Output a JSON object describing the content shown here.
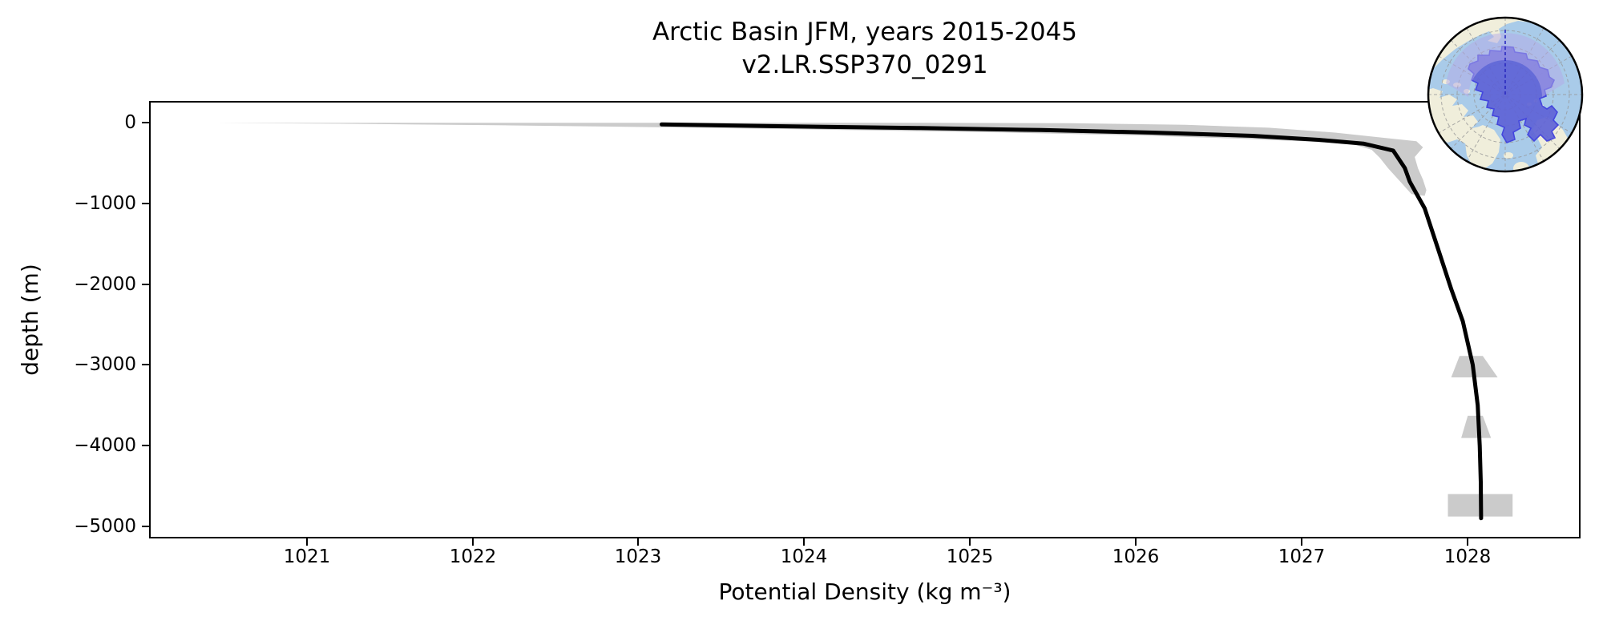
{
  "title": {
    "line1": "Arctic Basin JFM, years 2015-2045",
    "line2": "v2.LR.SSP370_0291"
  },
  "axes": {
    "xlabel": "Potential Density (kg m⁻³)",
    "ylabel": "depth (m)",
    "x_ticks": [
      1021,
      1022,
      1023,
      1024,
      1025,
      1026,
      1027,
      1028
    ],
    "y_ticks": [
      0,
      -1000,
      -2000,
      -3000,
      -4000,
      -5000
    ]
  },
  "colors": {
    "line": "#000000",
    "shading": "#cbcbcb",
    "background": "#ffffff",
    "map_ocean": "#a9cbe9",
    "map_land": "#f0eedb",
    "map_basin": "#5f63d6",
    "map_basin_edge": "#3b3bdd",
    "map_overlay": "#b3aae8",
    "map_graticule": "#979797",
    "map_meridian": "#2a2ac0",
    "map_border": "#000000"
  },
  "chart_data": {
    "type": "line",
    "title": "Arctic Basin JFM, years 2015-2045",
    "subtitle": "v2.LR.SSP370_0291",
    "xlabel": "Potential Density (kg m⁻³)",
    "ylabel": "depth (m)",
    "xlim": [
      1020.06,
      1028.67
    ],
    "ylim": [
      -5130,
      250
    ],
    "x_ticks": [
      1021,
      1022,
      1023,
      1024,
      1025,
      1026,
      1027,
      1028
    ],
    "y_ticks": [
      0,
      -1000,
      -2000,
      -3000,
      -4000,
      -5000
    ],
    "grid": false,
    "legend": false,
    "series": [
      {
        "name": "mean-density-profile",
        "type": "line",
        "color": "#000000",
        "points_density_depth": [
          [
            1023.14,
            -20
          ],
          [
            1023.8,
            -42
          ],
          [
            1024.7,
            -66
          ],
          [
            1025.43,
            -90
          ],
          [
            1026.1,
            -122
          ],
          [
            1026.7,
            -162
          ],
          [
            1027.1,
            -212
          ],
          [
            1027.37,
            -258
          ],
          [
            1027.55,
            -345
          ],
          [
            1027.62,
            -560
          ],
          [
            1027.65,
            -730
          ],
          [
            1027.74,
            -1060
          ],
          [
            1027.82,
            -1560
          ],
          [
            1027.9,
            -2060
          ],
          [
            1027.97,
            -2460
          ],
          [
            1028.03,
            -3000
          ],
          [
            1028.06,
            -3500
          ],
          [
            1028.072,
            -4000
          ],
          [
            1028.078,
            -4450
          ],
          [
            1028.08,
            -4900
          ]
        ]
      },
      {
        "name": "spread-envelope",
        "type": "area",
        "color": "#cbcbcb",
        "polygon_density_depth": [
          [
            1020.45,
            -3
          ],
          [
            1021.5,
            -1
          ],
          [
            1023.0,
            0
          ],
          [
            1024.5,
            0
          ],
          [
            1025.6,
            -6
          ],
          [
            1026.3,
            -26
          ],
          [
            1026.8,
            -62
          ],
          [
            1027.2,
            -122
          ],
          [
            1027.5,
            -188
          ],
          [
            1027.69,
            -228
          ],
          [
            1027.73,
            -305
          ],
          [
            1027.68,
            -425
          ],
          [
            1027.7,
            -565
          ],
          [
            1027.73,
            -705
          ],
          [
            1027.75,
            -835
          ],
          [
            1027.74,
            -905
          ],
          [
            1027.66,
            -885
          ],
          [
            1027.6,
            -745
          ],
          [
            1027.52,
            -565
          ],
          [
            1027.47,
            -435
          ],
          [
            1027.42,
            -335
          ],
          [
            1027.3,
            -262
          ],
          [
            1027.05,
            -232
          ],
          [
            1026.6,
            -196
          ],
          [
            1026.0,
            -156
          ],
          [
            1025.2,
            -120
          ],
          [
            1024.2,
            -88
          ],
          [
            1023.2,
            -58
          ],
          [
            1022.2,
            -32
          ],
          [
            1021.2,
            -12
          ]
        ],
        "blobs_density_depth": [
          [
            [
              1027.95,
              -2890
            ],
            [
              1028.09,
              -2890
            ],
            [
              1028.18,
              -3155
            ],
            [
              1027.9,
              -3155
            ]
          ],
          [
            [
              1028.0,
              -3630
            ],
            [
              1028.09,
              -3630
            ],
            [
              1028.14,
              -3905
            ],
            [
              1027.96,
              -3905
            ]
          ],
          [
            [
              1027.88,
              -4600
            ],
            [
              1028.27,
              -4600
            ],
            [
              1028.27,
              -4878
            ],
            [
              1027.88,
              -4878
            ]
          ]
        ]
      }
    ]
  },
  "inset_map": {
    "highlighted_region": "Arctic Basin",
    "projection": "north-polar-stereographic"
  }
}
